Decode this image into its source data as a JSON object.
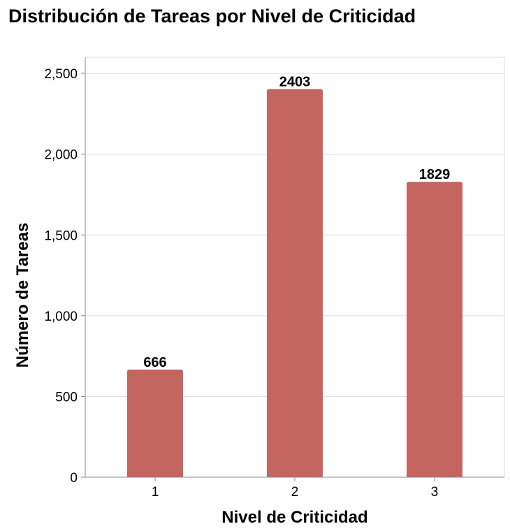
{
  "chart_data": {
    "type": "bar",
    "title": "Distribución de Tareas por Nivel de Criticidad",
    "xlabel": "Nivel de Criticidad",
    "ylabel": "Número de Tareas",
    "categories": [
      "1",
      "2",
      "3"
    ],
    "values": [
      666,
      2403,
      1829
    ],
    "ylim": [
      0,
      2600
    ],
    "yticks": [
      0,
      500,
      1000,
      1500,
      2000,
      2500
    ],
    "ytick_labels": [
      "0",
      "500",
      "1,000",
      "1,500",
      "2,000",
      "2,500"
    ],
    "bar_color": "#c46560",
    "grid": true
  }
}
